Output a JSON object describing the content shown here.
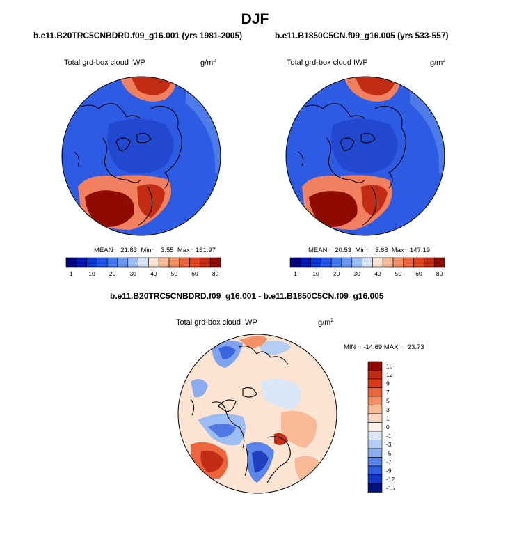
{
  "figure_title": "DJF",
  "colors": {
    "ocean_blue": "#2e5be3",
    "deep_blue": "#1f3fbf",
    "hot_red": "#c22b14",
    "dark_red": "#8f0b00",
    "coast": "#000000"
  },
  "panels": [
    {
      "case": "b.e11.B20TRC5CNBDRD.f09_g16.001 (yrs 1981-2005)",
      "variable": "Total grd-box cloud IWP",
      "unit_base": "g/m",
      "unit_exp": "2",
      "stats": "MEAN=  21.83  Min=   3.55  Max= 161.97"
    },
    {
      "case": "b.e11.B1850C5CN.f09_g16.005 (yrs 533-557)",
      "variable": "Total grd-box cloud IWP",
      "unit_base": "g/m",
      "unit_exp": "2",
      "stats": "MEAN=  20.53  Min=   3.68  Max= 147.19"
    },
    {
      "case": "b.e11.B20TRC5CNBDRD.f09_g16.001 - b.e11.B1850C5CN.f09_g16.005",
      "variable": "Total grd-box cloud IWP",
      "unit_base": "g/m",
      "unit_exp": "2",
      "stats": "MIN = -14.69 MAX =  23.73"
    }
  ],
  "chart_data": [
    {
      "type": "heatmap",
      "title": "b.e11.B20TRC5CNBDRD.f09_g16.001 (yrs 1981-2005)",
      "subtitle": "Total grd-box cloud IWP",
      "units": "g/m^2",
      "projection": "polar stereographic, North Pole",
      "colorbar": {
        "orientation": "horizontal",
        "levels": [
          "1",
          "",
          "10",
          "",
          "20",
          "",
          "30",
          "",
          "40",
          "",
          "50",
          "",
          "60",
          "",
          "80"
        ],
        "colors": [
          "#00007f",
          "#0016b3",
          "#0a36d6",
          "#1f55e8",
          "#3f78f0",
          "#6a98f2",
          "#9cbcf4",
          "#d6e3f7",
          "#fbe3d3",
          "#f8b997",
          "#f39066",
          "#ec653c",
          "#e0421c",
          "#c22b14",
          "#8f0b00"
        ]
      },
      "stats": {
        "mean": 21.83,
        "min": 3.55,
        "max": 161.97
      }
    },
    {
      "type": "heatmap",
      "title": "b.e11.B1850C5CN.f09_g16.005 (yrs 533-557)",
      "subtitle": "Total grd-box cloud IWP",
      "units": "g/m^2",
      "projection": "polar stereographic, North Pole",
      "colorbar": {
        "orientation": "horizontal",
        "levels": [
          "1",
          "",
          "10",
          "",
          "20",
          "",
          "30",
          "",
          "40",
          "",
          "50",
          "",
          "60",
          "",
          "80"
        ],
        "colors": [
          "#00007f",
          "#0016b3",
          "#0a36d6",
          "#1f55e8",
          "#3f78f0",
          "#6a98f2",
          "#9cbcf4",
          "#d6e3f7",
          "#fbe3d3",
          "#f8b997",
          "#f39066",
          "#ec653c",
          "#e0421c",
          "#c22b14",
          "#8f0b00"
        ]
      },
      "stats": {
        "mean": 20.53,
        "min": 3.68,
        "max": 147.19
      }
    },
    {
      "type": "heatmap",
      "title": "b.e11.B20TRC5CNBDRD.f09_g16.001 - b.e11.B1850C5CN.f09_g16.005",
      "subtitle": "Total grd-box cloud IWP",
      "units": "g/m^2",
      "projection": "polar stereographic, North Pole",
      "colorbar": {
        "orientation": "vertical",
        "levels": [
          "15",
          "12",
          "9",
          "7",
          "5",
          "3",
          "1",
          "0",
          "-1",
          "-3",
          "-5",
          "-7",
          "-9",
          "-12",
          "-15"
        ],
        "colors": [
          "#8f0b00",
          "#c22b14",
          "#dd3a1a",
          "#ec653c",
          "#f39066",
          "#f8b997",
          "#fbd6c0",
          "#fdf0e6",
          "#dbe7f7",
          "#b5cdf2",
          "#8badf0",
          "#5a86ea",
          "#2f5fe0",
          "#1537c6",
          "#00127f"
        ]
      },
      "stats": {
        "min": -14.69,
        "max": 23.73
      }
    }
  ]
}
